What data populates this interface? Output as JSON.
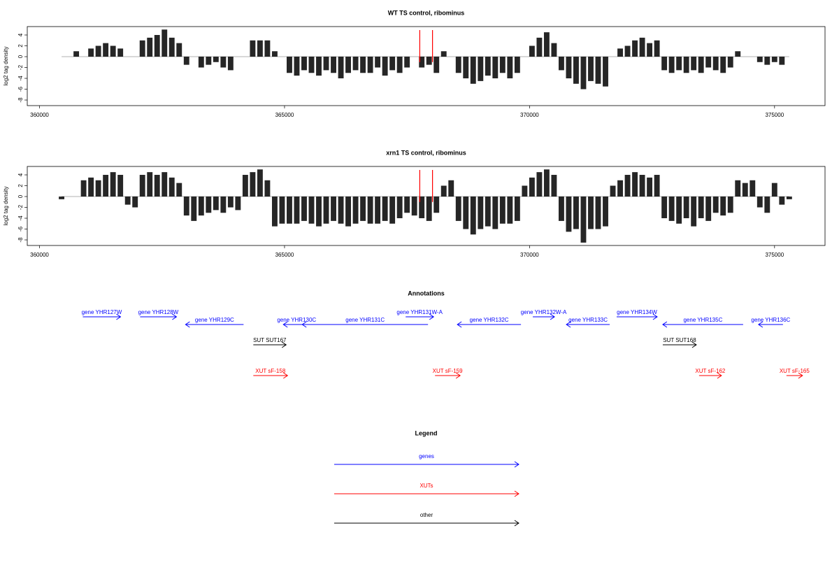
{
  "chart_data": [
    {
      "type": "bar",
      "title": "WT TS control, ribominus",
      "y_label": "log2 tag density",
      "x": [
        360450,
        360600,
        360750,
        360900,
        361050,
        361200,
        361350,
        361500,
        361650,
        361800,
        361950,
        362100,
        362250,
        362400,
        362550,
        362700,
        362850,
        363000,
        363150,
        363300,
        363450,
        363600,
        363750,
        363900,
        364050,
        364200,
        364350,
        364500,
        364650,
        364800,
        364950,
        365100,
        365250,
        365400,
        365550,
        365700,
        365850,
        366000,
        366150,
        366300,
        366450,
        366600,
        366750,
        366900,
        367050,
        367200,
        367350,
        367500,
        367650,
        367800,
        367950,
        368100,
        368250,
        368400,
        368550,
        368700,
        368850,
        369000,
        369150,
        369300,
        369450,
        369600,
        369750,
        369900,
        370050,
        370200,
        370350,
        370500,
        370650,
        370800,
        370950,
        371100,
        371250,
        371400,
        371550,
        371700,
        371850,
        372000,
        372150,
        372300,
        372450,
        372600,
        372750,
        372900,
        373050,
        373200,
        373350,
        373500,
        373650,
        373800,
        373950,
        374100,
        374250,
        374400,
        374550,
        374700,
        374850,
        375000,
        375150,
        375300
      ],
      "values": [
        0,
        0,
        1,
        0,
        1.5,
        2,
        2.5,
        2,
        1.5,
        0,
        0,
        3,
        3.5,
        4,
        5,
        3.5,
        2.5,
        -1.5,
        0,
        -2,
        -1.5,
        -1,
        -2,
        -2.5,
        0,
        0,
        3,
        3,
        3,
        1,
        0,
        -3,
        -3.5,
        -2.5,
        -3,
        -3.5,
        -2.5,
        -3,
        -4,
        -3,
        -2.5,
        -3,
        -3,
        -2,
        -3.5,
        -2.5,
        -3,
        -2,
        0,
        -2,
        -1.5,
        -3,
        1,
        0,
        -3,
        -4,
        -5,
        -4.5,
        -3.5,
        -4,
        -3,
        -4,
        -3,
        0,
        2,
        3.5,
        4.5,
        2.5,
        -2.5,
        -4,
        -5,
        -6,
        -4.5,
        -5,
        -5.5,
        0,
        1.5,
        2,
        3,
        3.5,
        2.5,
        3,
        -2.5,
        -3,
        -2.5,
        -3,
        -2.5,
        -3,
        -2,
        -2.5,
        -3,
        -2,
        1,
        0,
        0,
        -1,
        -1.5,
        -1,
        -1.5,
        0
      ],
      "color": "#000000",
      "markers": [
        367760,
        368020
      ],
      "marker_color": "#ff0000",
      "xlim": [
        359750,
        376030
      ],
      "xticks": [
        360000,
        365000,
        370000,
        375000
      ],
      "ylim": [
        -9.03,
        5.55
      ],
      "yticks": [
        -8,
        -6,
        -4,
        -2,
        0,
        2,
        4
      ]
    },
    {
      "type": "bar",
      "title": "xrn1 TS control, ribominus",
      "y_label": "log2 tag density",
      "x": [
        360450,
        360600,
        360750,
        360900,
        361050,
        361200,
        361350,
        361500,
        361650,
        361800,
        361950,
        362100,
        362250,
        362400,
        362550,
        362700,
        362850,
        363000,
        363150,
        363300,
        363450,
        363600,
        363750,
        363900,
        364050,
        364200,
        364350,
        364500,
        364650,
        364800,
        364950,
        365100,
        365250,
        365400,
        365550,
        365700,
        365850,
        366000,
        366150,
        366300,
        366450,
        366600,
        366750,
        366900,
        367050,
        367200,
        367350,
        367500,
        367650,
        367800,
        367950,
        368100,
        368250,
        368400,
        368550,
        368700,
        368850,
        369000,
        369150,
        369300,
        369450,
        369600,
        369750,
        369900,
        370050,
        370200,
        370350,
        370500,
        370650,
        370800,
        370950,
        371100,
        371250,
        371400,
        371550,
        371700,
        371850,
        372000,
        372150,
        372300,
        372450,
        372600,
        372750,
        372900,
        373050,
        373200,
        373350,
        373500,
        373650,
        373800,
        373950,
        374100,
        374250,
        374400,
        374550,
        374700,
        374850,
        375000,
        375150,
        375300
      ],
      "values": [
        -0.5,
        0,
        0,
        3,
        3.5,
        3,
        4,
        4.5,
        4,
        -1.5,
        -2,
        4,
        4.5,
        4,
        4.5,
        3.5,
        2.5,
        -3.5,
        -4.5,
        -3.5,
        -3,
        -2.5,
        -3,
        -2,
        -2.5,
        4,
        4.5,
        5,
        3,
        -5.5,
        -5,
        -5,
        -5,
        -4.5,
        -5,
        -5.5,
        -5,
        -4.5,
        -5,
        -5.5,
        -5,
        -4.5,
        -5,
        -5,
        -4.5,
        -5,
        -4,
        -3,
        -3.5,
        -4,
        -4.5,
        -3,
        2,
        3,
        -4.5,
        -6,
        -7,
        -6,
        -5.5,
        -6,
        -5,
        -5,
        -4.5,
        2,
        3.5,
        4.5,
        5,
        4,
        -4.5,
        -6.5,
        -6,
        -8.5,
        -6,
        -6,
        -5.5,
        2,
        3,
        4,
        4.5,
        4,
        3.5,
        4,
        -4,
        -4.5,
        -5,
        -4,
        -5.5,
        -4,
        -4.5,
        -3,
        -3.5,
        -3,
        3,
        2.5,
        3,
        -2,
        -3,
        2.5,
        -1.5,
        -0.5
      ],
      "color": "#000000",
      "markers": [
        367760,
        368020
      ],
      "marker_color": "#ff0000",
      "xlim": [
        359750,
        376030
      ],
      "xticks": [
        360000,
        365000,
        370000,
        375000
      ],
      "ylim": [
        -9.03,
        5.55
      ],
      "yticks": [
        -8,
        -6,
        -4,
        -2,
        0,
        2,
        4
      ]
    }
  ],
  "annotations": {
    "title": "Annotations",
    "xlim": [
      359750,
      376030
    ],
    "features": [
      {
        "label": "gene YHR127W",
        "kind": "gene",
        "strand": "+",
        "start": 360884,
        "end": 361654
      },
      {
        "label": "gene YHR128W",
        "kind": "gene",
        "strand": "+",
        "start": 362053,
        "end": 362795
      },
      {
        "label": "gene YHR129C",
        "kind": "gene",
        "strand": "-",
        "start": 362980,
        "end": 364164
      },
      {
        "label": "gene YHR130C",
        "kind": "gene",
        "strand": "-",
        "start": 364976,
        "end": 365518
      },
      {
        "label": "gene YHR131C",
        "kind": "gene",
        "strand": "-",
        "start": 365361,
        "end": 367928
      },
      {
        "label": "gene YHR131W-A",
        "kind": "gene",
        "strand": "+",
        "start": 367472,
        "end": 368042
      },
      {
        "label": "gene YHR132C",
        "kind": "gene",
        "strand": "-",
        "start": 368527,
        "end": 369825
      },
      {
        "label": "gene YHR132W-A",
        "kind": "gene",
        "strand": "+",
        "start": 370067,
        "end": 370509
      },
      {
        "label": "gene YHR133C",
        "kind": "gene",
        "strand": "-",
        "start": 370752,
        "end": 371636
      },
      {
        "label": "gene YHR134W",
        "kind": "gene",
        "strand": "+",
        "start": 371778,
        "end": 372605
      },
      {
        "label": "gene YHR135C",
        "kind": "gene",
        "strand": "-",
        "start": 372719,
        "end": 374359
      },
      {
        "label": "gene YHR136C",
        "kind": "gene",
        "strand": "-",
        "start": 374673,
        "end": 375172
      },
      {
        "label": "SUT SUT167",
        "kind": "other",
        "strand": "+",
        "start": 364363,
        "end": 365033
      },
      {
        "label": "SUT SUT168",
        "kind": "other",
        "strand": "+",
        "start": 372719,
        "end": 373404
      },
      {
        "label": "XUT sF-158",
        "kind": "xut",
        "strand": "+",
        "start": 364363,
        "end": 365062
      },
      {
        "label": "XUT sF-159",
        "kind": "xut",
        "strand": "+",
        "start": 368071,
        "end": 368584
      },
      {
        "label": "XUT sF-162",
        "kind": "xut",
        "strand": "+",
        "start": 373460,
        "end": 373917
      },
      {
        "label": "XUT sF-165",
        "kind": "xut",
        "strand": "+",
        "start": 375243,
        "end": 375571
      }
    ],
    "colors": {
      "gene": "#0000ff",
      "xut": "#ff0000",
      "other": "#000000"
    }
  },
  "legend": {
    "title": "Legend",
    "items": [
      {
        "label": "genes",
        "color": "#0000ff"
      },
      {
        "label": "XUTs",
        "color": "#ff0000"
      },
      {
        "label": "other",
        "color": "#000000"
      }
    ]
  }
}
